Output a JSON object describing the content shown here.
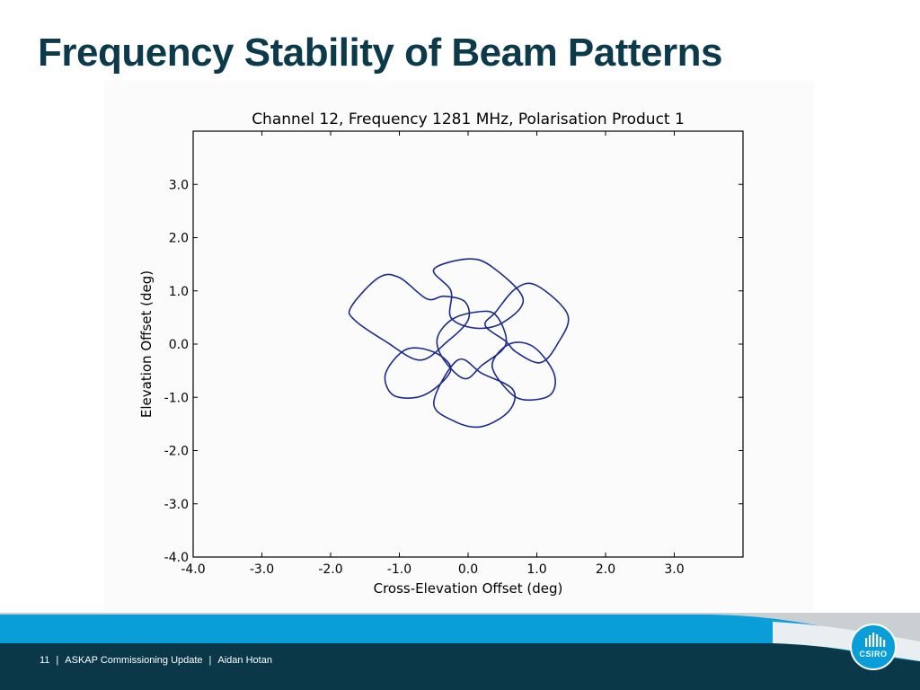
{
  "slide": {
    "title": "Frequency Stability of Beam Patterns",
    "footer": {
      "page_number": "11",
      "presentation": "ASKAP Commissioning Update",
      "author": "Aidan Hotan"
    },
    "logo_text": "CSIRO",
    "colors": {
      "title": "#0c3a4a",
      "footer_band": "#0a3848",
      "footer_wave": "#0a9ed9",
      "logo": "#0a9ed9",
      "beam_line": "#1c2a8a"
    }
  },
  "chart_data": {
    "type": "line",
    "title": "Channel 12, Frequency 1281 MHz, Polarisation Product 1",
    "xlabel": "Cross-Elevation Offset (deg)",
    "ylabel": "Elevation Offset (deg)",
    "xlim": [
      -4.0,
      4.0
    ],
    "ylim": [
      -4.0,
      4.0
    ],
    "x_ticks": [
      -4.0,
      -3.0,
      -2.0,
      -1.0,
      0.0,
      1.0,
      2.0,
      3.0
    ],
    "x_tick_labels": [
      "-4.0",
      "-3.0",
      "-2.0",
      "-1.0",
      "0.0",
      "1.0",
      "2.0",
      "3.0"
    ],
    "y_ticks": [
      -4.0,
      -3.0,
      -2.0,
      -1.0,
      0.0,
      1.0,
      2.0,
      3.0
    ],
    "y_tick_labels": [
      "-4.0",
      "-3.0",
      "-2.0",
      "-1.0",
      "0.0",
      "1.0",
      "2.0",
      "3.0"
    ],
    "grid": false,
    "legend": "none",
    "series": [
      {
        "points": [
          [
            -1.7,
            0.7
          ],
          [
            -1.3,
            1.25
          ],
          [
            -1.0,
            1.25
          ],
          [
            -0.6,
            0.85
          ],
          [
            -0.35,
            0.9
          ],
          [
            -0.05,
            0.8
          ],
          [
            0.0,
            0.45
          ],
          [
            -0.3,
            0.05
          ],
          [
            -0.7,
            -0.3
          ],
          [
            -1.2,
            0.05
          ],
          [
            -1.65,
            0.45
          ],
          [
            -1.7,
            0.7
          ]
        ]
      },
      {
        "points": [
          [
            -0.5,
            1.4
          ],
          [
            0.0,
            1.6
          ],
          [
            0.35,
            1.45
          ],
          [
            0.8,
            0.85
          ],
          [
            0.5,
            0.4
          ],
          [
            0.1,
            0.3
          ],
          [
            -0.25,
            0.5
          ],
          [
            -0.25,
            1.0
          ],
          [
            -0.5,
            1.4
          ]
        ]
      },
      {
        "points": [
          [
            0.4,
            0.6
          ],
          [
            0.7,
            1.05
          ],
          [
            1.0,
            1.1
          ],
          [
            1.45,
            0.55
          ],
          [
            1.3,
            0.0
          ],
          [
            1.05,
            -0.35
          ],
          [
            0.7,
            -0.15
          ],
          [
            0.55,
            0.05
          ],
          [
            0.25,
            0.35
          ],
          [
            0.4,
            0.6
          ]
        ]
      },
      {
        "points": [
          [
            -1.2,
            -0.55
          ],
          [
            -0.9,
            -0.1
          ],
          [
            -0.5,
            -0.15
          ],
          [
            -0.25,
            -0.45
          ],
          [
            -0.45,
            -0.8
          ],
          [
            -0.75,
            -1.0
          ],
          [
            -1.1,
            -0.95
          ],
          [
            -1.2,
            -0.55
          ]
        ]
      },
      {
        "points": [
          [
            -0.45,
            0.1
          ],
          [
            -0.25,
            0.45
          ],
          [
            0.1,
            0.6
          ],
          [
            0.4,
            0.55
          ],
          [
            0.55,
            0.0
          ],
          [
            0.2,
            -0.4
          ],
          [
            -0.05,
            -0.65
          ],
          [
            -0.35,
            -0.3
          ],
          [
            -0.45,
            0.1
          ]
        ]
      },
      {
        "points": [
          [
            0.35,
            -0.4
          ],
          [
            0.6,
            0.0
          ],
          [
            0.95,
            -0.05
          ],
          [
            1.25,
            -0.55
          ],
          [
            1.2,
            -0.95
          ],
          [
            0.85,
            -1.05
          ],
          [
            0.6,
            -0.9
          ],
          [
            0.35,
            -0.4
          ]
        ]
      },
      {
        "points": [
          [
            -0.5,
            -1.1
          ],
          [
            -0.15,
            -0.3
          ],
          [
            0.2,
            -0.55
          ],
          [
            0.65,
            -0.85
          ],
          [
            0.6,
            -1.25
          ],
          [
            0.2,
            -1.55
          ],
          [
            -0.2,
            -1.45
          ],
          [
            -0.5,
            -1.1
          ]
        ]
      }
    ]
  }
}
